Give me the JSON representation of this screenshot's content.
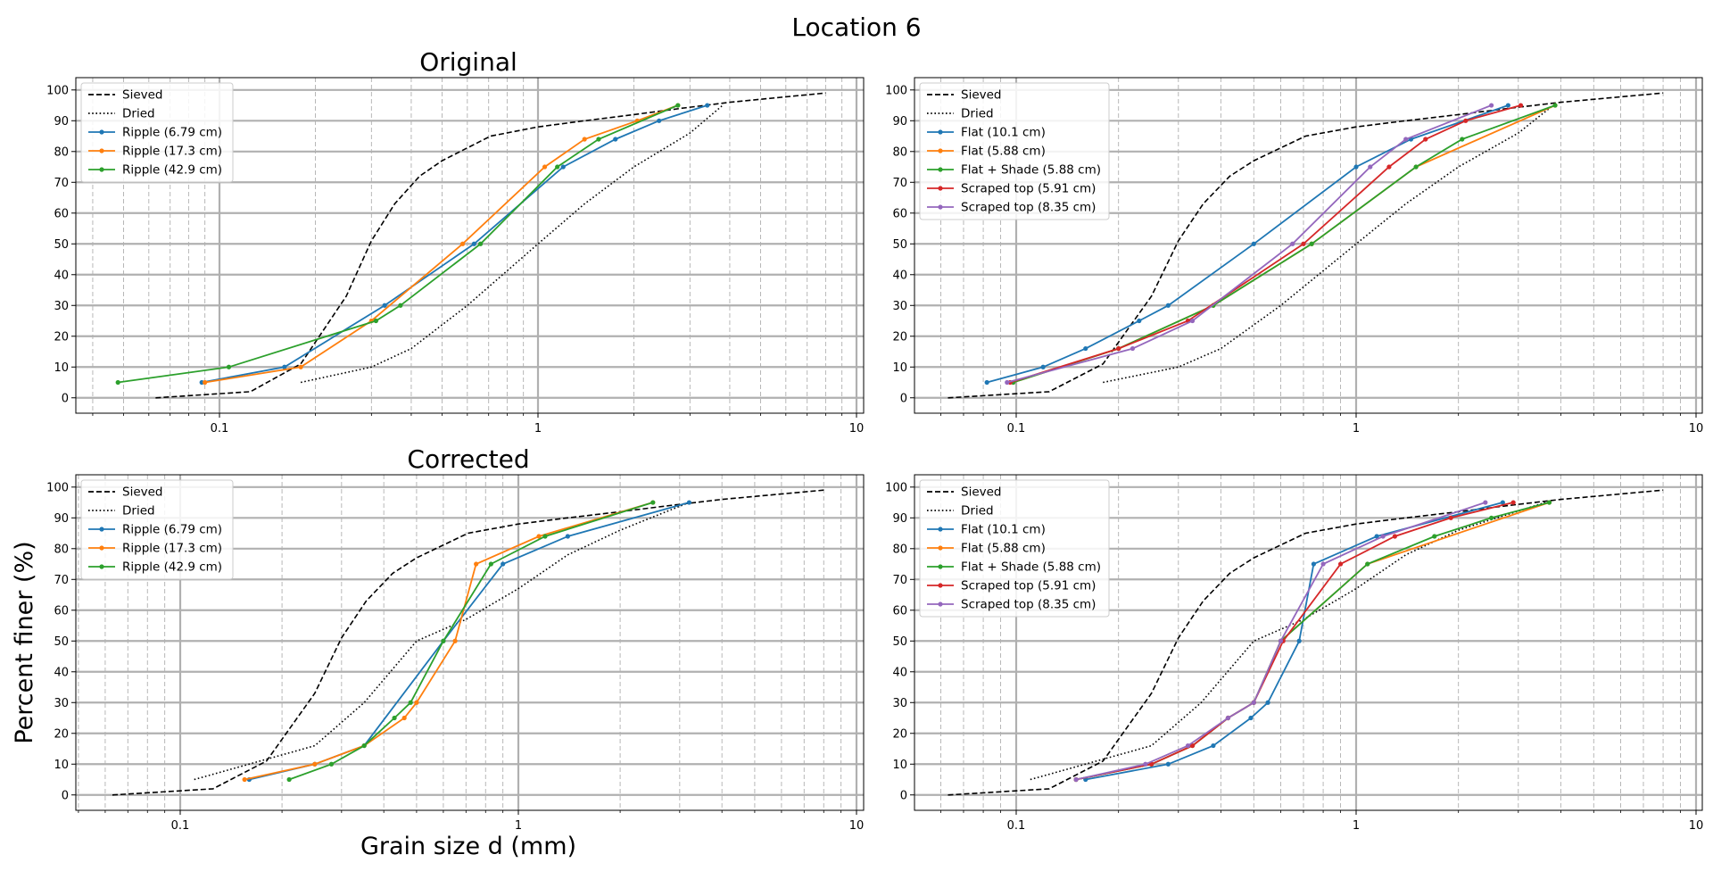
{
  "suptitle": "Location 6",
  "ylabel": "Percent finer (%)",
  "xlabel": "Grain size d (mm)",
  "colors": {
    "sieved": "#000000",
    "dried": "#000000",
    "blue": "#1f77b4",
    "orange": "#ff7f0e",
    "green": "#2ca02c",
    "red": "#d62728",
    "purple": "#9467bd",
    "grid": "#b0b0b0"
  },
  "chart_data": [
    {
      "type": "line",
      "title": "Original",
      "xscale": "log",
      "xlim": [
        0.05,
        10
      ],
      "ylim": [
        -5,
        104
      ],
      "xticks": [
        "0.1",
        "1",
        "10"
      ],
      "yticks": [
        "0",
        "10",
        "20",
        "30",
        "40",
        "50",
        "60",
        "70",
        "80",
        "90",
        "100"
      ],
      "grid": "major solid, minor dashed",
      "legend": "upper left",
      "series": [
        {
          "name": "Sieved",
          "style": "dashed",
          "color": "sieved",
          "x": [
            0.063,
            0.125,
            0.18,
            0.25,
            0.3,
            0.355,
            0.425,
            0.5,
            0.71,
            1.0,
            1.4,
            2.0,
            2.8,
            4.0,
            8.0
          ],
          "y": [
            0,
            2,
            11,
            33,
            51,
            63,
            72,
            77,
            85,
            88,
            90,
            92,
            94,
            96,
            99
          ]
        },
        {
          "name": "Dried",
          "style": "dotted",
          "color": "dried",
          "x": [
            0.18,
            0.3,
            0.4,
            0.6,
            1.0,
            1.4,
            2.0,
            3.0,
            3.8
          ],
          "y": [
            5,
            10,
            16,
            30,
            50,
            63,
            75,
            86,
            95
          ]
        },
        {
          "name": "Ripple (6.79 cm)",
          "color": "blue",
          "marker": true,
          "x": [
            0.088,
            0.16,
            0.33,
            0.63,
            1.2,
            1.75,
            2.4,
            3.4
          ],
          "y": [
            5,
            10,
            30,
            50,
            75,
            84,
            90,
            95
          ]
        },
        {
          "name": "Ripple (17.3 cm)",
          "color": "orange",
          "marker": true,
          "x": [
            0.09,
            0.18,
            0.3,
            0.58,
            1.05,
            1.4,
            2.05,
            2.75
          ],
          "y": [
            5,
            10,
            25,
            50,
            75,
            84,
            90,
            95
          ]
        },
        {
          "name": "Ripple (42.9 cm)",
          "color": "green",
          "marker": true,
          "x": [
            0.048,
            0.107,
            0.31,
            0.37,
            0.66,
            1.15,
            1.55,
            2.75
          ],
          "y": [
            5,
            10,
            25,
            30,
            50,
            75,
            84,
            95
          ]
        }
      ]
    },
    {
      "type": "line",
      "title": "",
      "xscale": "log",
      "xlim": [
        0.05,
        10
      ],
      "ylim": [
        -5,
        104
      ],
      "xticks": [
        "0.1",
        "1",
        "10"
      ],
      "yticks": [
        "0",
        "10",
        "20",
        "30",
        "40",
        "50",
        "60",
        "70",
        "80",
        "90",
        "100"
      ],
      "grid": "major solid, minor dashed",
      "legend": "upper left",
      "series": [
        {
          "name": "Sieved",
          "style": "dashed",
          "color": "sieved",
          "x": [
            0.063,
            0.125,
            0.18,
            0.25,
            0.3,
            0.355,
            0.425,
            0.5,
            0.71,
            1.0,
            1.4,
            2.0,
            2.8,
            4.0,
            8.0
          ],
          "y": [
            0,
            2,
            11,
            33,
            51,
            63,
            72,
            77,
            85,
            88,
            90,
            92,
            94,
            96,
            99
          ]
        },
        {
          "name": "Dried",
          "style": "dotted",
          "color": "dried",
          "x": [
            0.18,
            0.3,
            0.4,
            0.6,
            1.0,
            1.4,
            2.0,
            3.0,
            3.8
          ],
          "y": [
            5,
            10,
            16,
            30,
            50,
            63,
            75,
            86,
            95
          ]
        },
        {
          "name": "Flat (10.1 cm)",
          "color": "blue",
          "marker": true,
          "x": [
            0.082,
            0.12,
            0.16,
            0.23,
            0.28,
            0.5,
            1.0,
            1.45,
            2.8
          ],
          "y": [
            5,
            10,
            16,
            25,
            30,
            50,
            75,
            84,
            95
          ]
        },
        {
          "name": "Flat (5.88 cm)",
          "color": "orange",
          "marker": true,
          "x": [
            0.098,
            0.2,
            0.38,
            0.74,
            1.5,
            3.85
          ],
          "y": [
            5,
            16,
            30,
            50,
            75,
            95
          ]
        },
        {
          "name": "Flat + Shade (5.88 cm)",
          "color": "green",
          "marker": true,
          "x": [
            0.098,
            0.2,
            0.38,
            0.74,
            1.5,
            2.05,
            3.85
          ],
          "y": [
            5,
            16,
            30,
            50,
            75,
            84,
            95
          ]
        },
        {
          "name": "Scraped top (5.91 cm)",
          "color": "red",
          "marker": true,
          "x": [
            0.096,
            0.2,
            0.32,
            0.7,
            1.25,
            1.6,
            2.1,
            3.05
          ],
          "y": [
            5,
            16,
            25,
            50,
            75,
            84,
            90,
            95
          ]
        },
        {
          "name": "Scraped top (8.35 cm)",
          "color": "purple",
          "marker": true,
          "x": [
            0.094,
            0.22,
            0.33,
            0.65,
            1.1,
            1.4,
            2.5
          ],
          "y": [
            5,
            16,
            25,
            50,
            75,
            84,
            95
          ]
        }
      ]
    },
    {
      "type": "line",
      "title": "Corrected",
      "xscale": "log",
      "xlim": [
        0.05,
        10
      ],
      "ylim": [
        -5,
        104
      ],
      "xticks": [
        "0.1",
        "1",
        "10"
      ],
      "yticks": [
        "0",
        "10",
        "20",
        "30",
        "40",
        "50",
        "60",
        "70",
        "80",
        "90",
        "100"
      ],
      "grid": "major solid, minor dashed",
      "legend": "upper left",
      "series": [
        {
          "name": "Sieved",
          "style": "dashed",
          "color": "sieved",
          "x": [
            0.063,
            0.125,
            0.18,
            0.25,
            0.3,
            0.355,
            0.425,
            0.5,
            0.71,
            1.0,
            1.4,
            2.0,
            2.8,
            4.0,
            8.0
          ],
          "y": [
            0,
            2,
            11,
            33,
            51,
            63,
            72,
            77,
            85,
            88,
            90,
            92,
            94,
            96,
            99
          ]
        },
        {
          "name": "Dried",
          "style": "dotted",
          "color": "dried",
          "x": [
            0.11,
            0.25,
            0.35,
            0.5,
            0.7,
            1.0,
            1.4,
            2.0,
            3.2
          ],
          "y": [
            5,
            16,
            30,
            50,
            57,
            67,
            78,
            86,
            95
          ]
        },
        {
          "name": "Ripple (6.79 cm)",
          "color": "blue",
          "marker": true,
          "x": [
            0.16,
            0.25,
            0.35,
            0.6,
            0.9,
            1.4,
            3.2
          ],
          "y": [
            5,
            10,
            16,
            50,
            75,
            84,
            95
          ]
        },
        {
          "name": "Ripple (17.3 cm)",
          "color": "orange",
          "marker": true,
          "x": [
            0.155,
            0.25,
            0.35,
            0.46,
            0.5,
            0.65,
            0.75,
            1.15,
            2.5
          ],
          "y": [
            5,
            10,
            16,
            25,
            30,
            50,
            75,
            84,
            95
          ]
        },
        {
          "name": "Ripple (42.9 cm)",
          "color": "green",
          "marker": true,
          "x": [
            0.21,
            0.28,
            0.35,
            0.43,
            0.48,
            0.6,
            0.83,
            1.2,
            2.5
          ],
          "y": [
            5,
            10,
            16,
            25,
            30,
            50,
            75,
            84,
            95
          ]
        }
      ]
    },
    {
      "type": "line",
      "title": "",
      "xscale": "log",
      "xlim": [
        0.05,
        10
      ],
      "ylim": [
        -5,
        104
      ],
      "xticks": [
        "0.1",
        "1",
        "10"
      ],
      "yticks": [
        "0",
        "10",
        "20",
        "30",
        "40",
        "50",
        "60",
        "70",
        "80",
        "90",
        "100"
      ],
      "grid": "major solid, minor dashed",
      "legend": "upper left",
      "series": [
        {
          "name": "Sieved",
          "style": "dashed",
          "color": "sieved",
          "x": [
            0.063,
            0.125,
            0.18,
            0.25,
            0.3,
            0.355,
            0.425,
            0.5,
            0.71,
            1.0,
            1.4,
            2.0,
            2.8,
            4.0,
            8.0
          ],
          "y": [
            0,
            2,
            11,
            33,
            51,
            63,
            72,
            77,
            85,
            88,
            90,
            92,
            94,
            96,
            99
          ]
        },
        {
          "name": "Dried",
          "style": "dotted",
          "color": "dried",
          "x": [
            0.11,
            0.25,
            0.35,
            0.5,
            0.7,
            1.0,
            1.4,
            2.0,
            3.6
          ],
          "y": [
            5,
            16,
            30,
            50,
            57,
            67,
            78,
            86,
            95
          ]
        },
        {
          "name": "Flat (10.1 cm)",
          "color": "blue",
          "marker": true,
          "x": [
            0.16,
            0.28,
            0.38,
            0.49,
            0.55,
            0.68,
            0.75,
            1.15,
            2.7
          ],
          "y": [
            5,
            10,
            16,
            25,
            30,
            50,
            75,
            84,
            95
          ]
        },
        {
          "name": "Flat (5.88 cm)",
          "color": "orange",
          "marker": true,
          "x": [
            0.15,
            0.25,
            0.33,
            0.42,
            0.5,
            0.6,
            1.08,
            3.7
          ],
          "y": [
            5,
            10,
            16,
            25,
            30,
            50,
            75,
            95
          ]
        },
        {
          "name": "Flat + Shade (5.88 cm)",
          "color": "green",
          "marker": true,
          "x": [
            0.15,
            0.25,
            0.33,
            0.42,
            0.5,
            0.6,
            1.08,
            1.7,
            2.5,
            3.7
          ],
          "y": [
            5,
            10,
            16,
            25,
            30,
            50,
            75,
            84,
            90,
            95
          ]
        },
        {
          "name": "Scraped top (5.91 cm)",
          "color": "red",
          "marker": true,
          "x": [
            0.15,
            0.25,
            0.33,
            0.42,
            0.5,
            0.61,
            0.9,
            1.3,
            1.9,
            2.9
          ],
          "y": [
            5,
            10,
            16,
            25,
            30,
            50,
            75,
            84,
            90,
            95
          ]
        },
        {
          "name": "Scraped top (8.35 cm)",
          "color": "purple",
          "marker": true,
          "x": [
            0.15,
            0.24,
            0.32,
            0.42,
            0.5,
            0.6,
            0.8,
            1.2,
            2.4
          ],
          "y": [
            5,
            10,
            16,
            25,
            30,
            50,
            75,
            84,
            95
          ]
        }
      ]
    }
  ]
}
